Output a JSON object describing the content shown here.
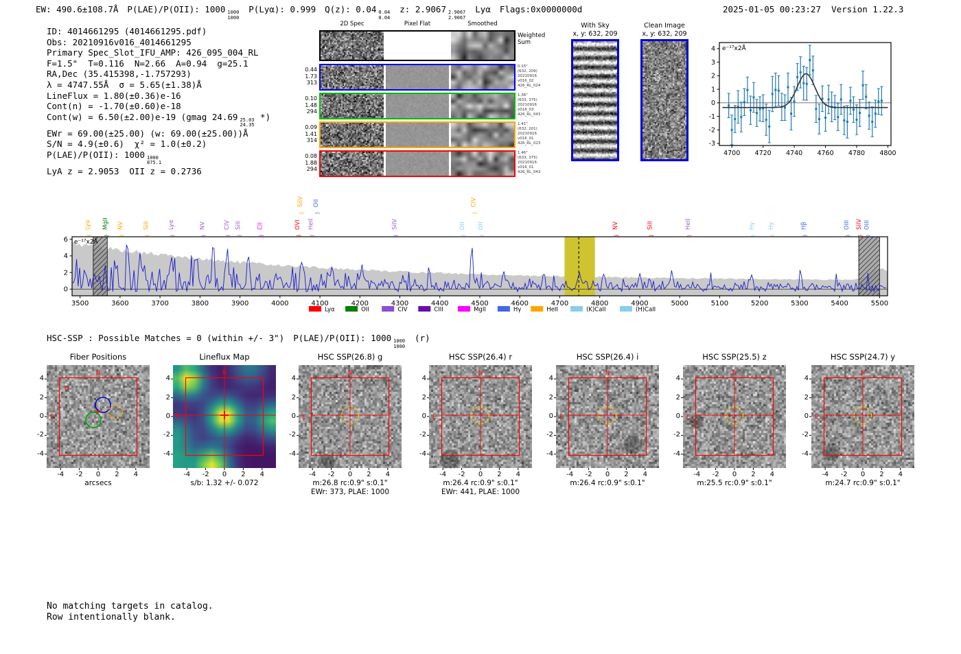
{
  "header": {
    "segments": [
      {
        "text": "EW: 490.6±108.7Å"
      },
      {
        "text": "P(LAE)/P(OII): 1000",
        "stack": [
          "1000",
          "1000"
        ]
      },
      {
        "text": "P(Lyα): 0.999"
      },
      {
        "text": "Q(z): 0.04",
        "stack": [
          "0.04",
          "0.04"
        ]
      },
      {
        "text": "z: 2.9067",
        "stack": [
          "2.9067",
          "2.9067"
        ]
      },
      {
        "text": "Lyα"
      },
      {
        "text": "Flags:0x0000000d"
      }
    ],
    "datetime": "2025-01-05 00:23:27",
    "version": "Version 1.22.3"
  },
  "info_block": {
    "lines": [
      {
        "text": "ID: 4014661295 (4014661295.pdf)"
      },
      {
        "text": "Obs: 20210916v016_4014661295"
      },
      {
        "text": "Primary Spec_Slot_IFU_AMP: 426_095_004_RL"
      },
      {
        "text": "F=1.5\"  T=0.116  N=2.66  A=0.94  g=25.1"
      },
      {
        "text": "RA,Dec (35.415398,-1.757293)"
      },
      {
        "text": "λ = 4747.55Å  σ = 5.65(±1.38)Å"
      },
      {
        "text": "LineFlux = 1.80(±0.36)e-16"
      },
      {
        "text": "Cont(n) = -1.70(±0.60)e-18"
      },
      {
        "text": "Cont(w) = 6.50(±2.00)e-19 (gmag 24.69",
        "stack": [
          "25.03",
          "24.35"
        ],
        "tail": " *)"
      },
      {
        "text": "EWr = 69.00(±25.00) (w: 69.00(±25.00))Å"
      },
      {
        "text": "S/N = 4.9(±0.6)  χ² = 1.0(±0.2)"
      },
      {
        "text": "P(LAE)/P(OII): 1000",
        "stack": [
          "1000",
          "875.1"
        ]
      },
      {
        "text": "LyA z = 2.9053  OII z = 0.2736"
      }
    ]
  },
  "spec2d": {
    "column_titles": [
      "2D Spec",
      "Pixel Flat",
      "Smoothed"
    ],
    "weighted_sum_label": [
      "Weighted",
      "Sum"
    ],
    "rows": [
      {
        "color": "#0000ee",
        "left": [
          "0.44",
          "1.73",
          "313"
        ],
        "right": [
          "0.15\"",
          "(632, 209)",
          "20210916",
          "v016_02",
          "426_RL_024"
        ]
      },
      {
        "color": "#00c000",
        "left": [
          "0.10",
          "1.48",
          "294"
        ],
        "right": [
          "1.36\"",
          "(633, 375)",
          "20210916",
          "v016_03",
          "426_RL_043"
        ]
      },
      {
        "color": "#ffa500",
        "left": [
          "0.09",
          "1.41",
          "314"
        ],
        "right": [
          "1.41\"",
          "(632, 201)",
          "20210916",
          "v016_01",
          "426_RL_023"
        ]
      },
      {
        "color": "#ff0000",
        "left": [
          "0.08",
          "1.88",
          "294"
        ],
        "right": [
          "1.46\"",
          "(633, 375)",
          "20210916",
          "v016_01",
          "426_RL_043"
        ]
      }
    ]
  },
  "sky_panels": [
    {
      "title": "With Sky",
      "subtitle": "x, y: 632, 209"
    },
    {
      "title": "Clean Image",
      "subtitle": "x, y: 632, 209"
    }
  ],
  "hsc_header": {
    "segments": [
      {
        "text": "HSC-SSP : Possible Matches = 0 (within +/- 3\")"
      },
      {
        "text": "P(LAE)/P(OII): 1000",
        "stack": [
          "1000",
          "1000"
        ]
      },
      {
        "text": "(r)"
      }
    ]
  },
  "cutouts": {
    "axis_ticks": [
      -4,
      -2,
      0,
      2,
      4
    ],
    "compass": {
      "north": "N",
      "east": "E"
    },
    "panels": [
      {
        "title": "Fiber Positions",
        "caption1": "arcsecs",
        "caption2": "",
        "kind": "fiber"
      },
      {
        "title": "Lineflux Map",
        "caption1": "s/b: 1.32 +/- 0.072",
        "caption2": "",
        "kind": "lineflux"
      },
      {
        "title": "HSC SSP(26.8) g",
        "caption1": "m:26.8 rc:0.9\"  s:0.1\"",
        "caption2": "EWr: 373, PLAE: 1000",
        "kind": "img"
      },
      {
        "title": "HSC SSP(26.4) r",
        "caption1": "m:26.4 rc:0.9\"  s:0.1\"",
        "caption2": "EWr: 441, PLAE: 1000",
        "kind": "img"
      },
      {
        "title": "HSC SSP(26.4) i",
        "caption1": "m:26.4 rc:0.9\"  s:0.1\"",
        "caption2": "",
        "kind": "img"
      },
      {
        "title": "HSC SSP(25.5) z",
        "caption1": "m:25.5 rc:0.9\"  s:0.1\"",
        "caption2": "",
        "kind": "img"
      },
      {
        "title": "HSC SSP(24.7) y",
        "caption1": "m:24.7 rc:0.9\"  s:0.1\"",
        "caption2": "",
        "kind": "img"
      }
    ]
  },
  "bottom_text": [
    "No matching targets in catalog.",
    "Row intentionally blank."
  ],
  "chart_data": [
    {
      "id": "zoom_plot",
      "type": "scatter",
      "annotation": "e⁻¹⁷x2Å",
      "xlim": [
        4692,
        4802
      ],
      "ylim": [
        -3.15,
        4.45
      ],
      "xticks": [
        4700,
        4720,
        4740,
        4760,
        4780,
        4800
      ],
      "yticks": [
        -3,
        -2,
        -1,
        0,
        1,
        2,
        3,
        4
      ],
      "marker_color": "#1f77b4",
      "fit_color": "#333333",
      "x": [
        4698,
        4700,
        4702,
        4704,
        4706,
        4708,
        4710,
        4712,
        4714,
        4716,
        4718,
        4720,
        4722,
        4724,
        4726,
        4728,
        4730,
        4732,
        4734,
        4736,
        4738,
        4740,
        4742,
        4744,
        4746,
        4748,
        4750,
        4752,
        4754,
        4756,
        4758,
        4760,
        4762,
        4764,
        4766,
        4768,
        4770,
        4772,
        4774,
        4776,
        4778,
        4780,
        4782,
        4784,
        4786,
        4788,
        4790,
        4792,
        4794,
        4796
      ],
      "y": [
        -0.2,
        -2.0,
        -1.2,
        -0.3,
        -1.05,
        0.05,
        0.95,
        -0.55,
        0.4,
        -0.75,
        -0.45,
        -0.4,
        -1.25,
        -1.75,
        0.65,
        0.95,
        0.9,
        -0.3,
        -0.35,
        1.15,
        -0.8,
        0.1,
        1.9,
        2.25,
        1.45,
        1.4,
        3.15,
        2.4,
        -0.45,
        -1.2,
        0.3,
        -1.1,
        0.25,
        -0.3,
        -0.35,
        -1.05,
        0.25,
        -1.3,
        -1.4,
        0.15,
        -0.5,
        -1.25,
        -0.75,
        1.3,
        0.45,
        -0.95,
        -1.4,
        -0.8,
        0.1,
        0.15
      ],
      "yerr": [
        0.9,
        1.1,
        1.0,
        1.2,
        1.1,
        1.0,
        0.95,
        1.05,
        1.1,
        1.0,
        0.9,
        1.0,
        1.15,
        1.2,
        1.3,
        1.25,
        1.1,
        1.0,
        0.95,
        1.05,
        1.2,
        1.1,
        1.0,
        1.15,
        1.25,
        1.2,
        1.1,
        1.05,
        1.0,
        1.1,
        0.95,
        1.0,
        1.05,
        1.1,
        0.9,
        1.0,
        1.1,
        1.05,
        1.2,
        1.0,
        0.95,
        1.1,
        1.0,
        1.05,
        0.9,
        1.0,
        1.1,
        1.0,
        0.95,
        1.05
      ],
      "fit": {
        "type": "gaussian",
        "center": 4747.55,
        "sigma": 5.65,
        "peak": 2.15,
        "baseline": -0.35
      }
    },
    {
      "id": "main_spectrum",
      "type": "line",
      "annotation": "e⁻¹⁷x2Å",
      "xlim": [
        3480,
        5520
      ],
      "ylim": [
        -0.8,
        6.3
      ],
      "xticks": [
        3500,
        3600,
        3700,
        3800,
        3900,
        4000,
        4100,
        4200,
        4300,
        4400,
        4500,
        4600,
        4700,
        4800,
        4900,
        5000,
        5100,
        5200,
        5300,
        5400,
        5500
      ],
      "yticks": [
        0,
        2,
        4,
        6
      ],
      "line_color": "#1a1acd",
      "noise_envelope_color": "#c9c9c9",
      "highlight_band": {
        "x0": 4712,
        "x1": 4788,
        "color": "#cfc430"
      },
      "marked_line_wavelength": 4747.55,
      "hatched_bands": [
        [
          3533,
          3568
        ],
        [
          5448,
          5500
        ]
      ],
      "peaks": [
        [
          3575,
          4.6
        ],
        [
          3618,
          5.9
        ],
        [
          3650,
          4.2
        ],
        [
          3742,
          6.1
        ],
        [
          3788,
          4.0
        ],
        [
          3833,
          6.3
        ],
        [
          3868,
          5.0
        ],
        [
          3920,
          4.4
        ],
        [
          4056,
          3.6
        ],
        [
          4130,
          3.1
        ],
        [
          4205,
          2.9
        ],
        [
          4320,
          2.6
        ],
        [
          4372,
          2.8
        ],
        [
          4480,
          4.9
        ],
        [
          4560,
          2.2
        ],
        [
          4660,
          2.0
        ],
        [
          4749,
          2.3
        ],
        [
          4810,
          2.1
        ],
        [
          4900,
          2.0
        ],
        [
          4980,
          2.2
        ],
        [
          5080,
          2.6
        ],
        [
          5180,
          2.0
        ],
        [
          5302,
          2.4
        ],
        [
          5390,
          1.9
        ],
        [
          5470,
          2.2
        ]
      ],
      "line_labels": [
        {
          "label": "Lyα",
          "wave": 3519,
          "color": "#ffa500",
          "row": "low"
        },
        {
          "label": "MgII",
          "wave": 3562,
          "color": "#008000",
          "row": "low"
        },
        {
          "label": "NV",
          "wave": 3600,
          "color": "#ffa500",
          "row": "low"
        },
        {
          "label": "SiII",
          "wave": 3665,
          "color": "#ffa500",
          "row": "low"
        },
        {
          "label": "Lyα",
          "wave": 3727,
          "color": "#9b59d6",
          "row": "low"
        },
        {
          "label": "NV",
          "wave": 3805,
          "color": "#9b59d6",
          "row": "low"
        },
        {
          "label": "CIV",
          "wave": 3866,
          "color": "#9b59d6",
          "row": "low"
        },
        {
          "label": "SiII",
          "wave": 3895,
          "color": "#9b59d6",
          "row": "low"
        },
        {
          "label": "CII",
          "wave": 3950,
          "color": "#ff00ff",
          "row": "low"
        },
        {
          "label": "OVI",
          "wave": 4043,
          "color": "#ff0000",
          "row": "low"
        },
        {
          "label": "SiIV",
          "wave": 4050,
          "color": "#ffa500",
          "row": "high"
        },
        {
          "label": "HeII",
          "wave": 4077,
          "color": "#9b59d6",
          "row": "low"
        },
        {
          "label": "OII",
          "wave": 4090,
          "color": "#4169e1",
          "row": "high"
        },
        {
          "label": "SiIV",
          "wave": 4286,
          "color": "#9b59d6",
          "row": "low"
        },
        {
          "label": "OII",
          "wave": 4455,
          "color": "#87ceeb",
          "row": "low"
        },
        {
          "label": "CIV",
          "wave": 4484,
          "color": "#ffa500",
          "row": "high"
        },
        {
          "label": "OII",
          "wave": 4502,
          "color": "#87ceeb",
          "row": "low"
        },
        {
          "label": "NV",
          "wave": 4838,
          "color": "#ff0000",
          "row": "low"
        },
        {
          "label": "SiII",
          "wave": 4925,
          "color": "#ff0000",
          "row": "low"
        },
        {
          "label": "HeII",
          "wave": 5020,
          "color": "#9b59d6",
          "row": "low"
        },
        {
          "label": "Hγ",
          "wave": 5180,
          "color": "#87ceeb",
          "row": "low"
        },
        {
          "label": "Hγ",
          "wave": 5228,
          "color": "#87ceeb",
          "row": "low"
        },
        {
          "label": "Hβ",
          "wave": 5310,
          "color": "#4169e1",
          "row": "low"
        },
        {
          "label": "OIII",
          "wave": 5417,
          "color": "#4169e1",
          "row": "low"
        },
        {
          "label": "SiIV",
          "wave": 5448,
          "color": "#ff0000",
          "row": "low"
        },
        {
          "label": "OIII",
          "wave": 5468,
          "color": "#4169e1",
          "row": "low"
        }
      ],
      "legend": [
        {
          "label": "Lyα",
          "color": "#ff0000"
        },
        {
          "label": "OII",
          "color": "#008000"
        },
        {
          "label": "CIV",
          "color": "#8b4fd0"
        },
        {
          "label": "CIII",
          "color": "#6a0dad"
        },
        {
          "label": "MgII",
          "color": "#ff00ff"
        },
        {
          "label": "Hγ",
          "color": "#4169e1"
        },
        {
          "label": "HeII",
          "color": "#ffa500"
        },
        {
          "label": "(K)CaII",
          "color": "#87ceeb"
        },
        {
          "label": "(H)CaII",
          "color": "#87ceeb"
        }
      ]
    },
    {
      "id": "lineflux_map",
      "type": "heatmap",
      "colormap": "viridis",
      "caption": "s/b: 1.32 +/- 0.072",
      "extent": [
        -5,
        5,
        -5,
        5
      ],
      "hotspots": [
        [
          0,
          0,
          1.0
        ],
        [
          -3.6,
          3.6,
          0.95
        ],
        [
          -1.2,
          -4.6,
          0.9
        ],
        [
          4.6,
          -0.3,
          0.65
        ],
        [
          -4.7,
          -1.6,
          0.45
        ],
        [
          2.4,
          4.7,
          0.35
        ],
        [
          -4.5,
          -4.3,
          0.5
        ]
      ]
    }
  ]
}
